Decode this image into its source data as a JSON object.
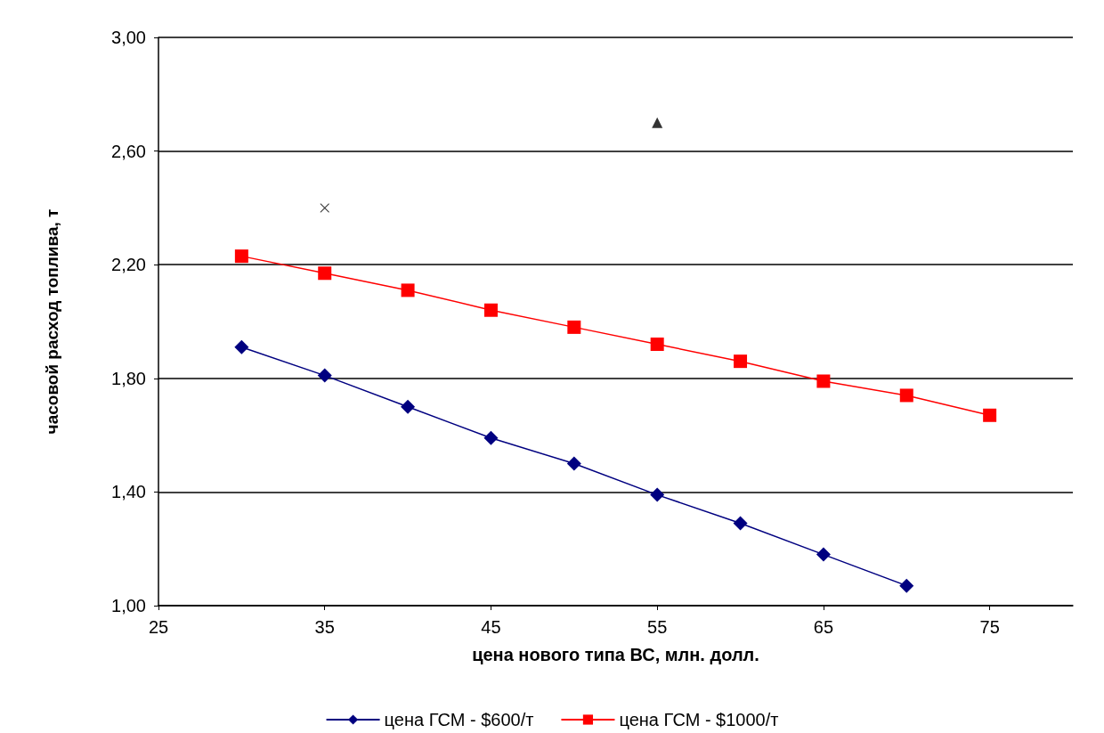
{
  "chart_data": {
    "type": "line",
    "xlabel": "цена нового типа ВС, млн. долл.",
    "ylabel": "часовой расход топлива, т",
    "x": [
      30,
      35,
      40,
      45,
      50,
      55,
      60,
      65,
      70,
      75
    ],
    "series": [
      {
        "name": "цена ГСМ - $600/т",
        "color": "#000080",
        "marker": "diamond",
        "values": [
          1.91,
          1.81,
          1.7,
          1.59,
          1.5,
          1.39,
          1.29,
          1.18,
          1.07,
          null
        ]
      },
      {
        "name": "цена ГСМ - $1000/т",
        "color": "#ff0000",
        "marker": "square",
        "values": [
          2.23,
          2.17,
          2.11,
          2.04,
          1.98,
          1.92,
          1.86,
          1.79,
          1.74,
          1.67
        ]
      },
      {
        "type": "scatter",
        "color": "#000000",
        "marker": "triangle",
        "x": [
          55
        ],
        "values": [
          2.7
        ]
      },
      {
        "type": "scatter",
        "color": "#000000",
        "marker": "cross",
        "x": [
          35
        ],
        "values": [
          2.4
        ]
      }
    ],
    "xlim": [
      25,
      80
    ],
    "xticks": [
      25,
      35,
      45,
      55,
      65,
      75
    ],
    "ylim": [
      1,
      3
    ],
    "yticks": [
      {
        "value": 1,
        "label": "1,00"
      },
      {
        "value": 1.4,
        "label": "1,40"
      },
      {
        "value": 1.8,
        "label": "1,80"
      },
      {
        "value": 2.2,
        "label": "2,20"
      },
      {
        "value": 2.6,
        "label": "2,60"
      },
      {
        "value": 3,
        "label": "3,00"
      }
    ],
    "grid": "y",
    "legend": "bottom"
  }
}
